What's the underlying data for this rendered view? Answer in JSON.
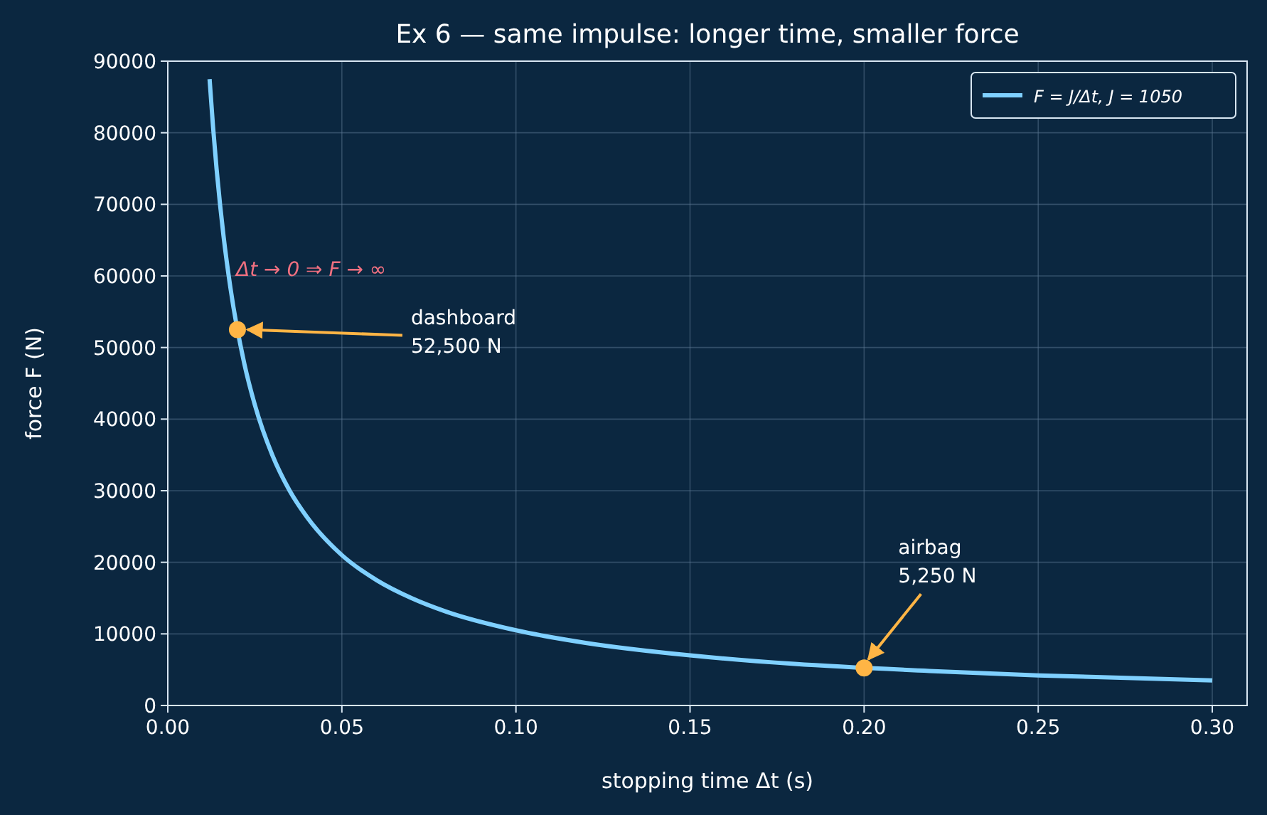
{
  "chart_data": {
    "type": "line",
    "title": "Ex 6 — same impulse: longer time, smaller force",
    "xlabel": "stopping time  Δt  (s)",
    "ylabel": "force  F  (N)",
    "xlim": [
      0,
      0.31
    ],
    "ylim": [
      0,
      90000
    ],
    "xticks": [
      {
        "value": 0,
        "label": "0.00"
      },
      {
        "value": 0.05,
        "label": "0.05"
      },
      {
        "value": 0.1,
        "label": "0.10"
      },
      {
        "value": 0.15,
        "label": "0.15"
      },
      {
        "value": 0.2,
        "label": "0.20"
      },
      {
        "value": 0.25,
        "label": "0.25"
      },
      {
        "value": 0.3,
        "label": "0.30"
      }
    ],
    "yticks": [
      0,
      10000,
      20000,
      30000,
      40000,
      50000,
      60000,
      70000,
      80000,
      90000
    ],
    "grid": true,
    "legend": "top right",
    "series": [
      {
        "name": "F = J/Δt,  J = 1050",
        "color": "#7fd0ff",
        "x": [
          0.012,
          0.013,
          0.014,
          0.015,
          0.016,
          0.018,
          0.022,
          0.025,
          0.03,
          0.035,
          0.04,
          0.05,
          0.06,
          0.07,
          0.08,
          0.1,
          0.12,
          0.15,
          0.18,
          0.22,
          0.25,
          0.3
        ],
        "values": [
          87500,
          80800,
          75000,
          70000,
          65600,
          58300,
          47700,
          42000,
          35000,
          30000,
          26300,
          21000,
          17500,
          15000,
          13100,
          10500,
          8750,
          7000,
          5800,
          4800,
          4200,
          3500
        ]
      },
      {
        "type": "scatter",
        "color": "#ffb545",
        "x": [
          0.02,
          0.2
        ],
        "values": [
          52500,
          5250
        ],
        "marker": "circle"
      }
    ],
    "annotations": [
      "Δt → 0 ⇒ F → ∞",
      {
        "text": "dashboard\n52,500 N",
        "x": 0.02,
        "y": 52500
      },
      {
        "text": "airbag\n5,250 N",
        "x": 0.2,
        "y": 5250
      }
    ]
  }
}
